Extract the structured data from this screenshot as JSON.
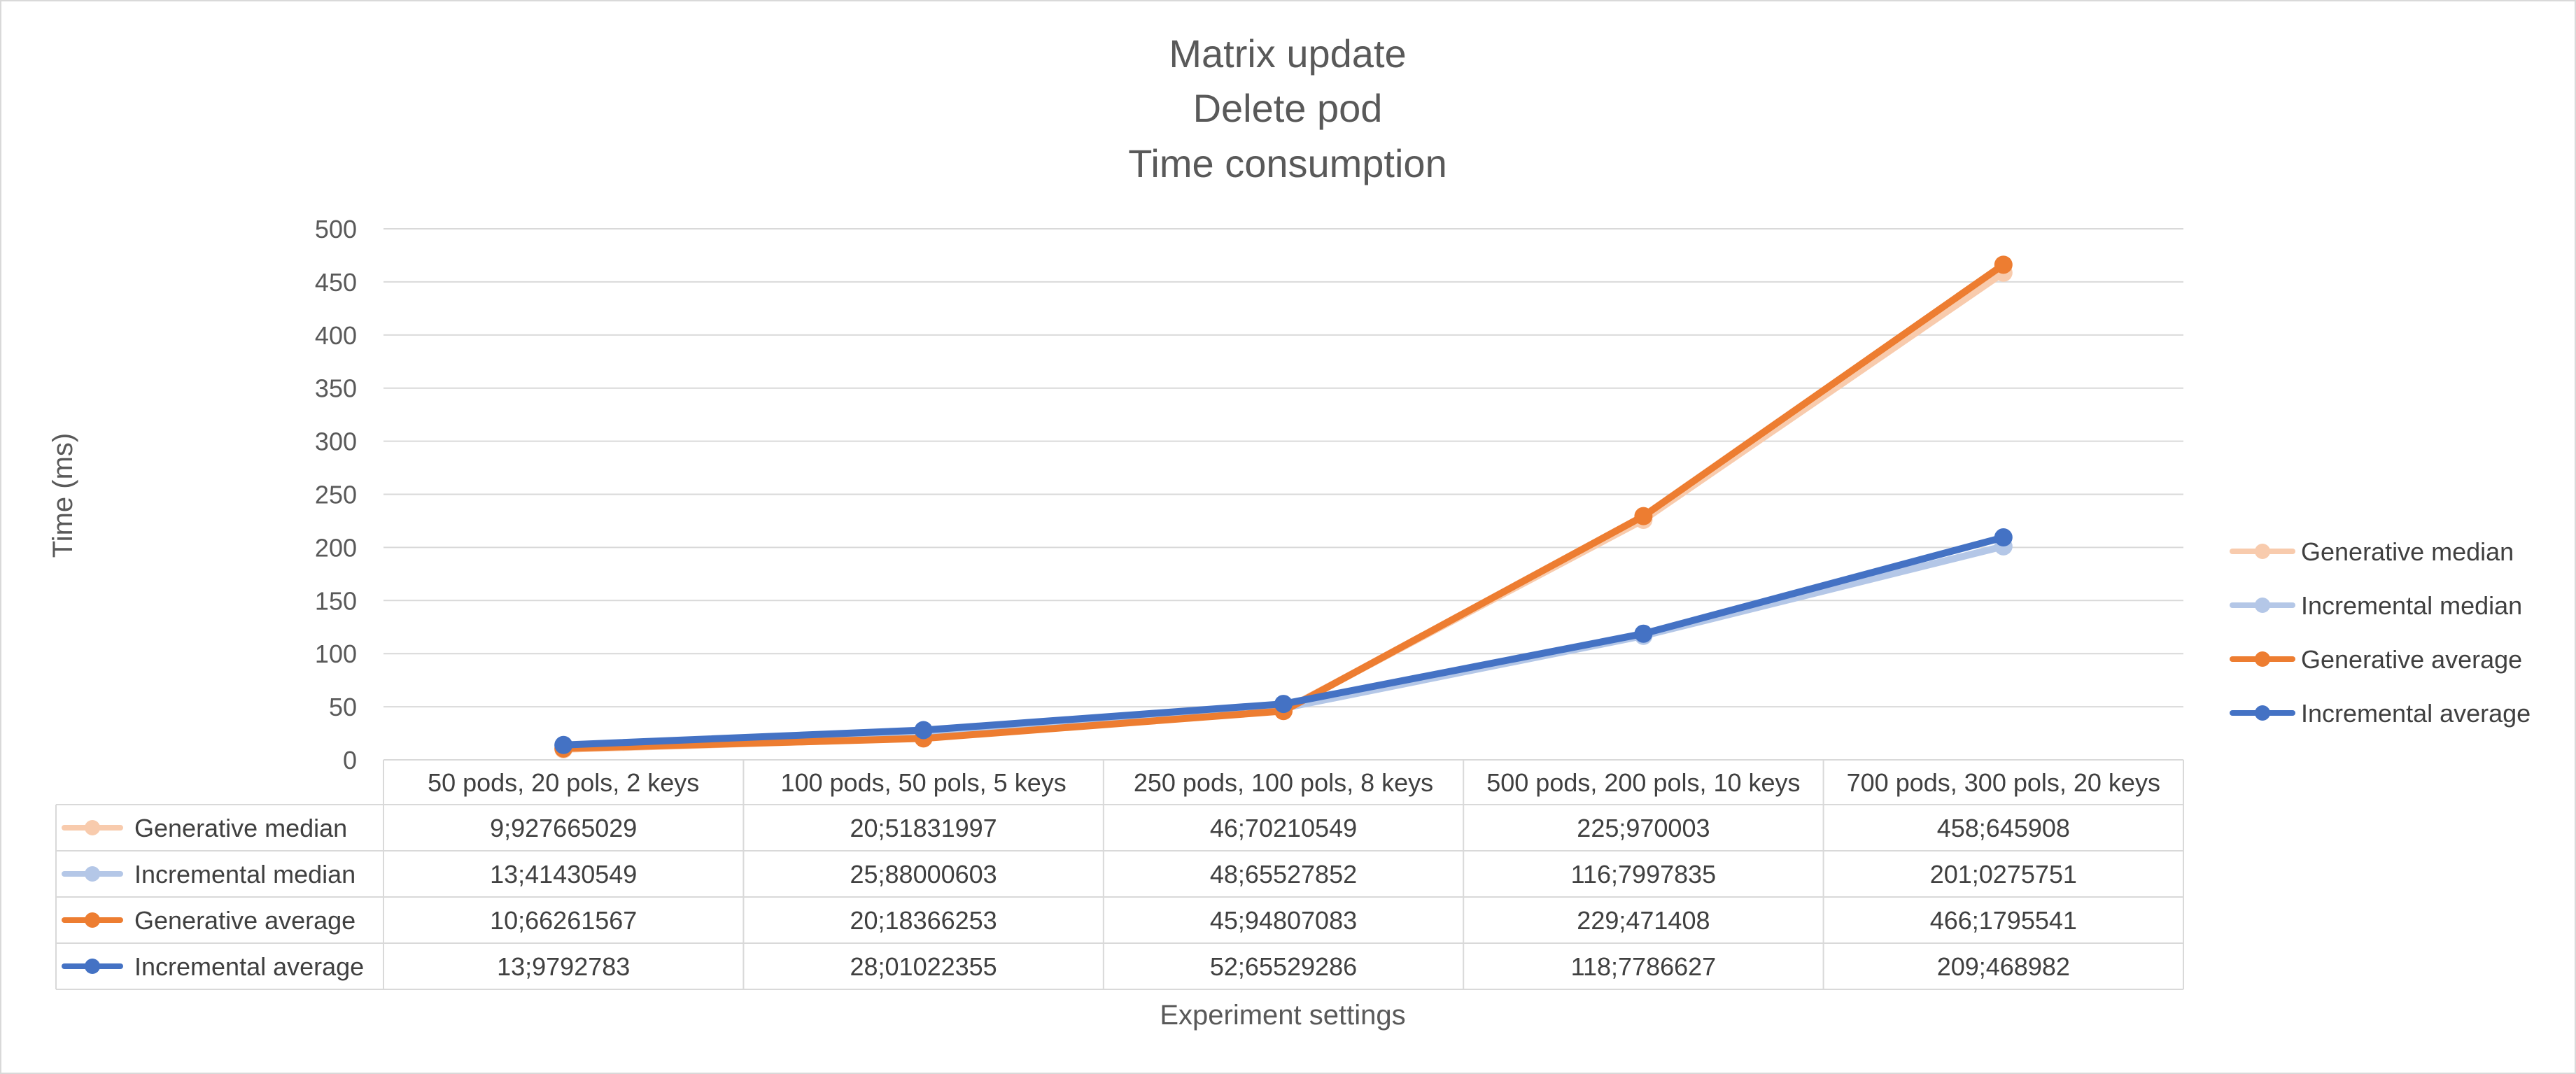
{
  "chart_data": {
    "type": "line",
    "title_lines": [
      "Matrix update",
      "Delete pod",
      "Time consumption"
    ],
    "xlabel": "Experiment settings",
    "ylabel": "Time (ms)",
    "ylim": [
      0,
      500
    ],
    "y_ticks": [
      "0",
      "50",
      "100",
      "150",
      "200",
      "250",
      "300",
      "350",
      "400",
      "450",
      "500"
    ],
    "categories": [
      "50 pods, 20 pols, 2 keys",
      "100 pods, 50 pols, 5 keys",
      "250 pods, 100 pols, 8 keys",
      "500 pods, 200 pols, 10 keys",
      "700 pods, 300 pols, 20 keys"
    ],
    "legend_position": "right",
    "grid": true,
    "series": [
      {
        "name": "Generative median",
        "color": "#f8cbad",
        "values": [
          9.927665029,
          20.51831997,
          46.70210549,
          225.970003,
          458.645908
        ],
        "labels": [
          "9;927665029",
          "20;51831997",
          "46;70210549",
          "225;970003",
          "458;645908"
        ]
      },
      {
        "name": "Incremental median",
        "color": "#b4c7e7",
        "values": [
          13.41430549,
          25.88000603,
          48.65527852,
          116.7997835,
          201.0275751
        ],
        "labels": [
          "13;41430549",
          "25;88000603",
          "48;65527852",
          "116;7997835",
          "201;0275751"
        ]
      },
      {
        "name": "Generative average",
        "color": "#ed7d31",
        "values": [
          10.66261567,
          20.18366253,
          45.94807083,
          229.471408,
          466.1795541
        ],
        "labels": [
          "10;66261567",
          "20;18366253",
          "45;94807083",
          "229;471408",
          "466;1795541"
        ]
      },
      {
        "name": "Incremental average",
        "color": "#4472c4",
        "values": [
          13.9792783,
          28.01022355,
          52.65529286,
          118.7786627,
          209.468982
        ],
        "labels": [
          "13;9792783",
          "28;01022355",
          "52;65529286",
          "118;7786627",
          "209;468982"
        ]
      }
    ]
  }
}
